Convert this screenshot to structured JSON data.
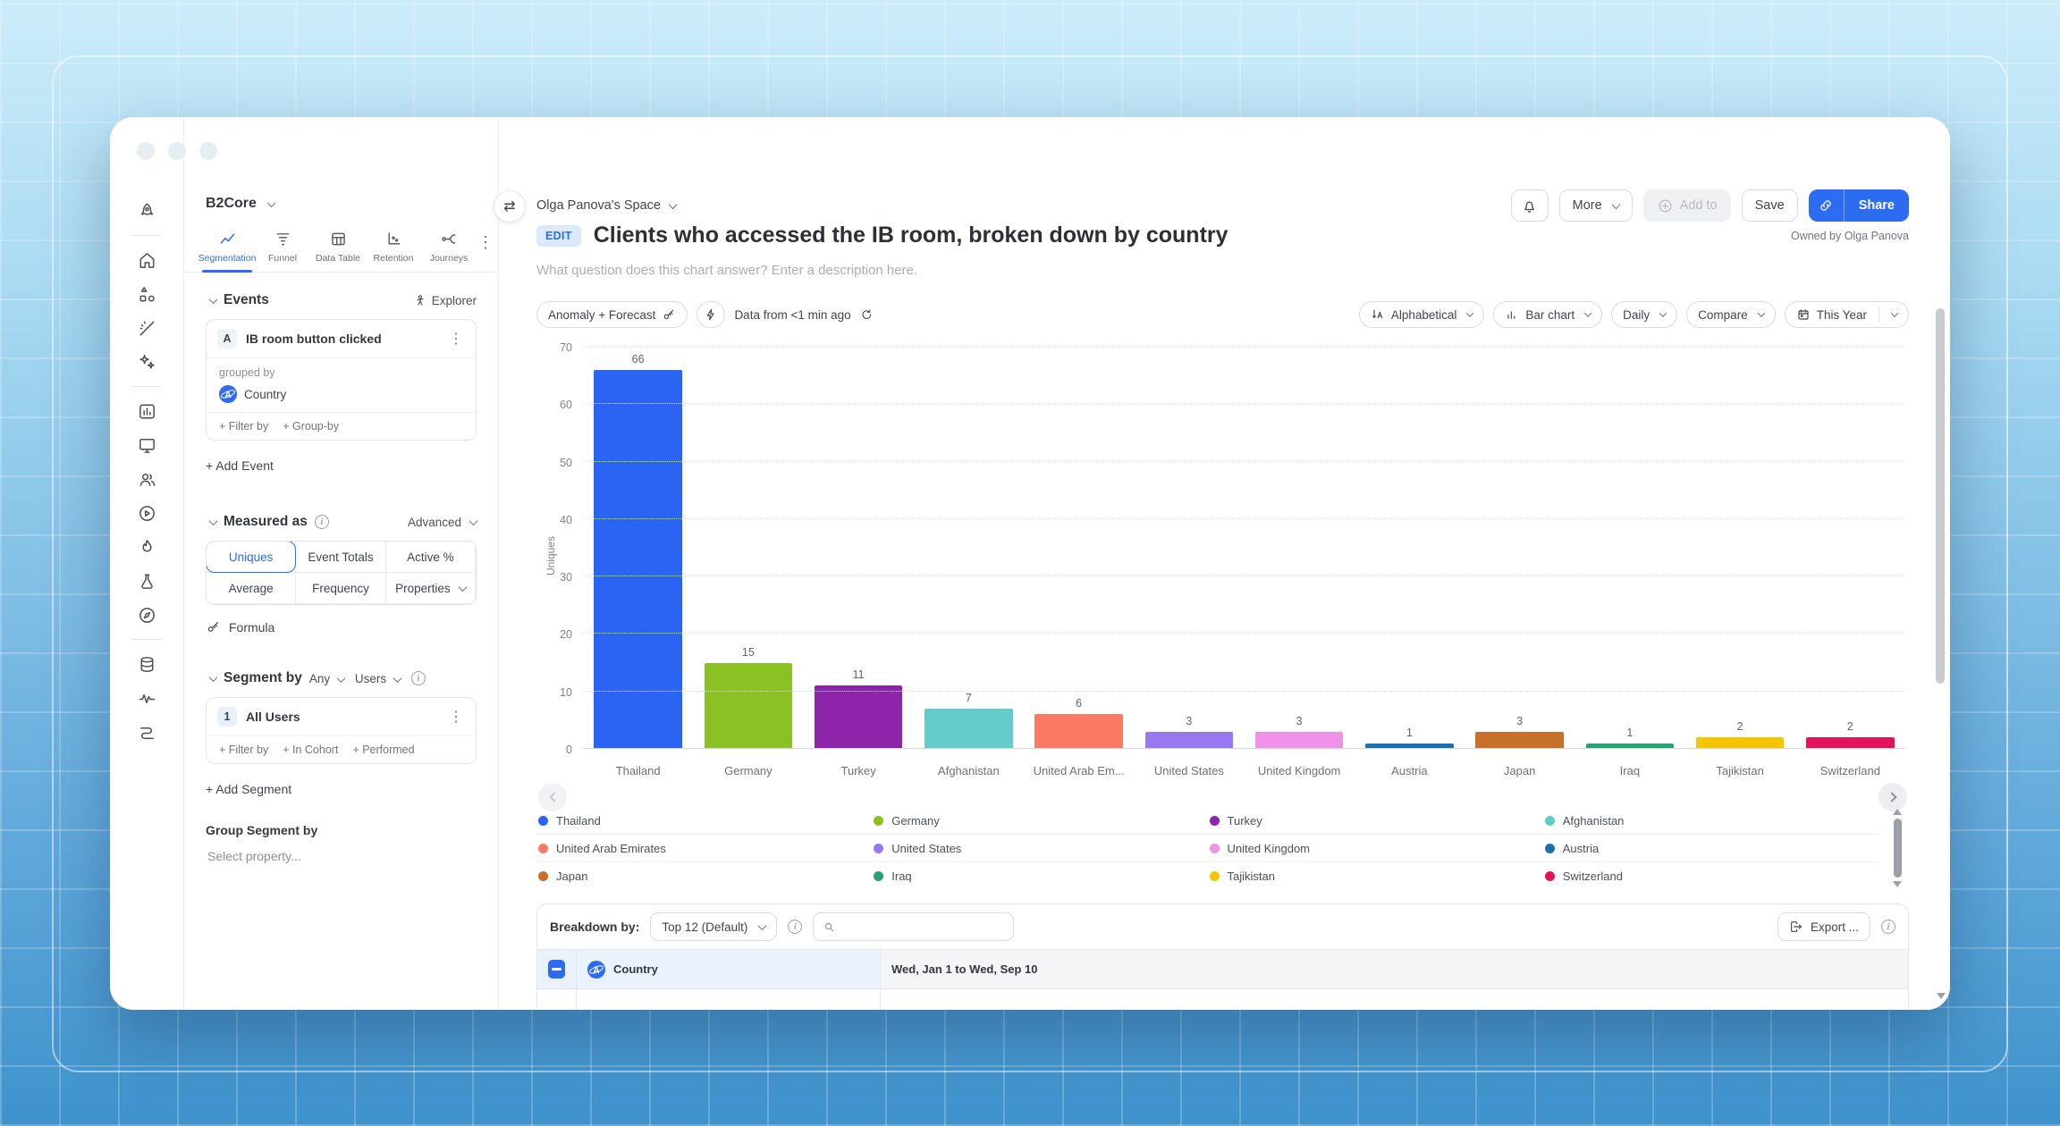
{
  "window": {
    "owned_by": "Owned by Olga Panova"
  },
  "rail": {
    "icons": [
      "rocket",
      "home",
      "org-shapes",
      "magic-wand",
      "sparkles",
      "dashboards",
      "displays",
      "users",
      "session-replay",
      "flame",
      "experiments",
      "compass",
      "data",
      "signals",
      "journeys-route"
    ]
  },
  "sidebar": {
    "project": "B2Core",
    "tabs": [
      {
        "label": "Segmentation",
        "active": true
      },
      {
        "label": "Funnel",
        "active": false
      },
      {
        "label": "Data Table",
        "active": false
      },
      {
        "label": "Retention",
        "active": false
      },
      {
        "label": "Journeys",
        "active": false
      }
    ],
    "events": {
      "title": "Events",
      "explorer": "Explorer",
      "event_letter": "A",
      "event_name": "IB room button clicked",
      "grouped_by": "grouped by",
      "group_value": "Country",
      "filter_by": "+ Filter by",
      "group_by": "+ Group-by",
      "add_event": "+ Add Event"
    },
    "measured": {
      "title": "Measured as",
      "advanced": "Advanced",
      "options": [
        "Uniques",
        "Event Totals",
        "Active %",
        "Average",
        "Frequency",
        "Properties"
      ],
      "active_option": "Uniques",
      "formula": "Formula"
    },
    "segment": {
      "title": "Segment by",
      "any": "Any",
      "users": "Users",
      "index": "1",
      "name": "All Users",
      "filter_by": "+ Filter by",
      "in_cohort": "+ In Cohort",
      "performed": "+ Performed",
      "add_segment": "+ Add Segment",
      "group_title": "Group Segment by",
      "select_property": "Select property..."
    }
  },
  "header": {
    "space": "Olga Panova's Space",
    "edit": "EDIT",
    "title": "Clients who accessed the IB room, broken down by country",
    "description": "What question does this chart answer? Enter a description here.",
    "more": "More",
    "add_to": "Add to",
    "save": "Save",
    "share": "Share"
  },
  "toolbar": {
    "anomaly": "Anomaly + Forecast",
    "data_from": "Data from <1 min ago",
    "sort": "Alphabetical",
    "chart_type": "Bar chart",
    "granularity": "Daily",
    "compare": "Compare",
    "range": "This Year"
  },
  "chart_data": {
    "type": "bar",
    "title": "Clients who accessed the IB room, broken down by country",
    "ylabel": "Uniques",
    "xlabel": "",
    "ylim": [
      0,
      70
    ],
    "yticks": [
      0,
      10,
      20,
      30,
      40,
      50,
      60,
      70
    ],
    "grid": "horizontal-dotted",
    "legend_position": "bottom",
    "categories": [
      "Thailand",
      "Germany",
      "Turkey",
      "Afghanistan",
      "United Arab Em...",
      "United States",
      "United Kingdom",
      "Austria",
      "Japan",
      "Iraq",
      "Tajikistan",
      "Switzerland"
    ],
    "values": [
      66,
      15,
      11,
      7,
      6,
      3,
      3,
      1,
      3,
      1,
      2,
      2
    ],
    "colors": [
      "#2b63f3",
      "#8bc125",
      "#8e24aa",
      "#64cbcb",
      "#fa7a62",
      "#9878f0",
      "#f092ea",
      "#1d6fad",
      "#c8702a",
      "#2aa173",
      "#f7c500",
      "#e3135b"
    ]
  },
  "legend": {
    "items": [
      {
        "label": "Thailand",
        "color": "#2b63f3"
      },
      {
        "label": "Germany",
        "color": "#8bc125"
      },
      {
        "label": "Turkey",
        "color": "#8e24aa"
      },
      {
        "label": "Afghanistan",
        "color": "#64cbcb"
      },
      {
        "label": "United Arab Emirates",
        "color": "#fa7a62"
      },
      {
        "label": "United States",
        "color": "#9878f0"
      },
      {
        "label": "United Kingdom",
        "color": "#f092ea"
      },
      {
        "label": "Austria",
        "color": "#1d6fad"
      },
      {
        "label": "Japan",
        "color": "#c8702a"
      },
      {
        "label": "Iraq",
        "color": "#2aa173"
      },
      {
        "label": "Tajikistan",
        "color": "#f7c500"
      },
      {
        "label": "Switzerland",
        "color": "#e3135b"
      }
    ]
  },
  "breakdown": {
    "label": "Breakdown by:",
    "top": "Top 12 (Default)",
    "search_placeholder": "",
    "export": "Export ...",
    "col_country": "Country",
    "col_dates": "Wed, Jan 1 to Wed, Sep 10"
  }
}
